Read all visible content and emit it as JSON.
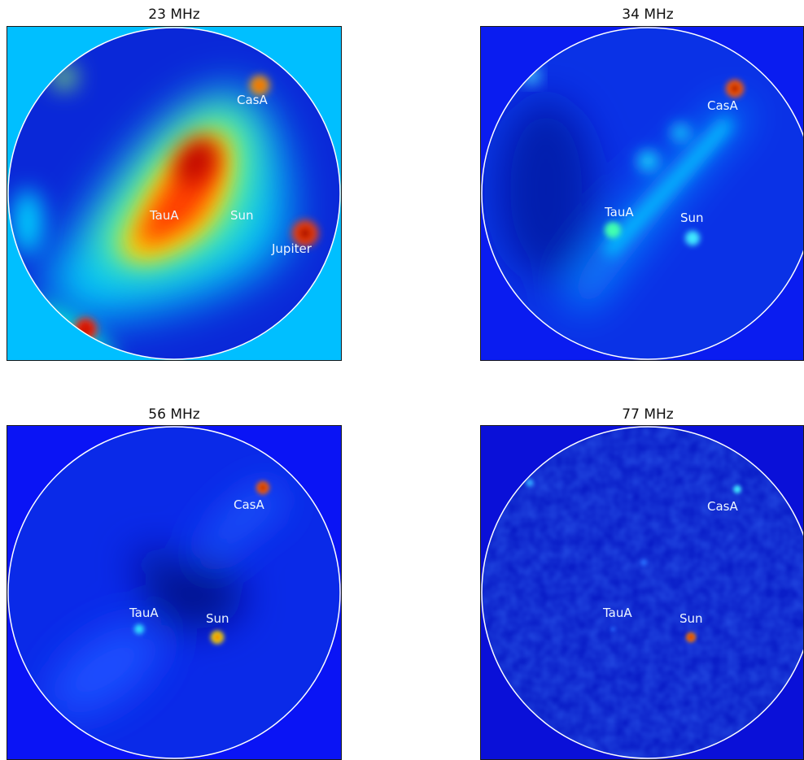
{
  "panels": [
    {
      "title": "23 MHz",
      "background_color": "#00bfff",
      "disk_color": "#0a28d8",
      "sources": [
        {
          "label": "CasA"
        },
        {
          "label": "TauA"
        },
        {
          "label": "Sun"
        },
        {
          "label": "Jupiter"
        }
      ]
    },
    {
      "title": "34 MHz",
      "background_color": "#0a1cf0",
      "disk_color": "#0a32e6",
      "sources": [
        {
          "label": "CasA"
        },
        {
          "label": "TauA"
        },
        {
          "label": "Sun"
        }
      ]
    },
    {
      "title": "56 MHz",
      "background_color": "#0a14f5",
      "disk_color": "#0a2ae8",
      "sources": [
        {
          "label": "CasA"
        },
        {
          "label": "TauA"
        },
        {
          "label": "Sun"
        }
      ]
    },
    {
      "title": "77 MHz",
      "background_color": "#0a10d8",
      "disk_color": "#0a1ec8",
      "sources": [
        {
          "label": "CasA"
        },
        {
          "label": "TauA"
        },
        {
          "label": "Sun"
        }
      ]
    }
  ],
  "colormap": "jet",
  "horizon_circle_color": "#ffffff"
}
